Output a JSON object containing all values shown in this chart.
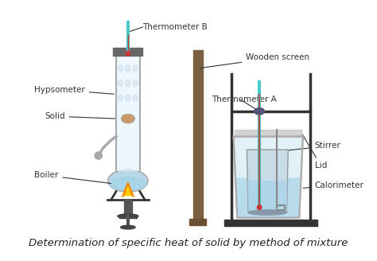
{
  "title": "Determination of specific heat of solid by method of mixture",
  "title_fontsize": 11,
  "background_color": "#ffffff",
  "labels": {
    "thermometer_b": "Thermometer B",
    "hypsometer": "Hypsometer",
    "solid": "Solid",
    "boiler": "Boiler",
    "wooden_screen": "Wooden screen",
    "thermometer_a": "Thermometer A",
    "stirrer": "Stirrer",
    "lid": "Lid",
    "calorimeter": "Calorimeter"
  },
  "thermometer_teal": "#4bc8c8",
  "thermometer_red": "#cc3333",
  "glass_fill": "#e8f4f8",
  "glass_stroke": "#aaaaaa",
  "water_blue": "#a8d4e8",
  "boiler_blue": "#b8d8e8",
  "flame_orange": "#ff8800",
  "flame_yellow": "#ffcc00",
  "stand_dark": "#333333",
  "wooden_screen_brown": "#7a6040",
  "label_color": "#333333",
  "calorimeter_glass": "#d0e8f0",
  "lid_color": "#cccccc"
}
